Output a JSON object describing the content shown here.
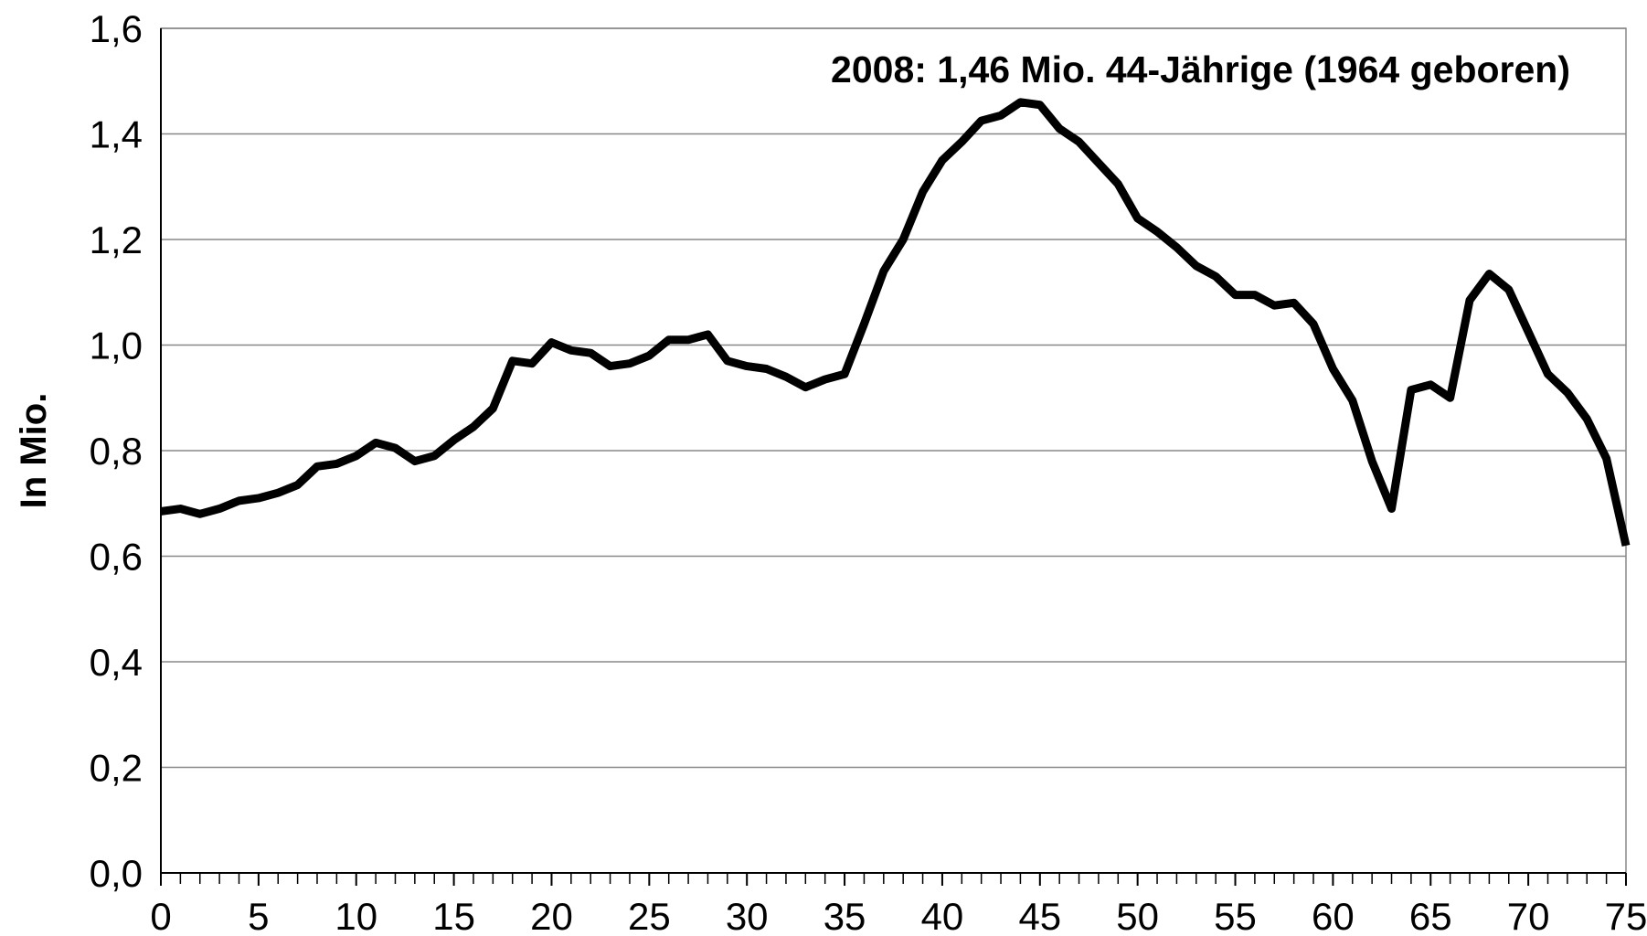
{
  "chart_data": {
    "type": "line",
    "annotation": "2008: 1,46 Mio. 44-Jährige (1964 geboren)",
    "ylabel": "In Mio.",
    "x": [
      0,
      1,
      2,
      3,
      4,
      5,
      6,
      7,
      8,
      9,
      10,
      11,
      12,
      13,
      14,
      15,
      16,
      17,
      18,
      19,
      20,
      21,
      22,
      23,
      24,
      25,
      26,
      27,
      28,
      29,
      30,
      31,
      32,
      33,
      34,
      35,
      36,
      37,
      38,
      39,
      40,
      41,
      42,
      43,
      44,
      45,
      46,
      47,
      48,
      49,
      50,
      51,
      52,
      53,
      54,
      55,
      56,
      57,
      58,
      59,
      60,
      61,
      62,
      63,
      64,
      65,
      66,
      67,
      68,
      69,
      70,
      71,
      72,
      73,
      74,
      75
    ],
    "series": [
      {
        "color": "#000000",
        "values": [
          0.685,
          0.69,
          0.68,
          0.69,
          0.705,
          0.71,
          0.72,
          0.735,
          0.77,
          0.775,
          0.79,
          0.815,
          0.805,
          0.78,
          0.79,
          0.82,
          0.845,
          0.88,
          0.97,
          0.965,
          1.005,
          0.99,
          0.985,
          0.96,
          0.965,
          0.98,
          1.01,
          1.01,
          1.02,
          0.97,
          0.96,
          0.955,
          0.94,
          0.92,
          0.935,
          0.945,
          1.04,
          1.14,
          1.2,
          1.29,
          1.35,
          1.385,
          1.425,
          1.435,
          1.46,
          1.455,
          1.41,
          1.385,
          1.345,
          1.305,
          1.24,
          1.215,
          1.185,
          1.15,
          1.13,
          1.095,
          1.095,
          1.075,
          1.08,
          1.04,
          0.955,
          0.895,
          0.78,
          0.69,
          0.915,
          0.925,
          0.9,
          1.085,
          1.135,
          1.105,
          1.025,
          0.945,
          0.91,
          0.86,
          0.785,
          0.62
        ]
      }
    ],
    "xlim": [
      0,
      75
    ],
    "xticks": [
      0,
      5,
      10,
      15,
      20,
      25,
      30,
      35,
      40,
      45,
      50,
      55,
      60,
      65,
      70,
      75
    ],
    "ylim": [
      0,
      1.6
    ],
    "yticks": [
      {
        "value": 0,
        "label": "0,0"
      },
      {
        "value": 0.2,
        "label": "0,2"
      },
      {
        "value": 0.4,
        "label": "0,4"
      },
      {
        "value": 0.6,
        "label": "0,6"
      },
      {
        "value": 0.8,
        "label": "0,8"
      },
      {
        "value": 1.0,
        "label": "1,0"
      },
      {
        "value": 1.2,
        "label": "1,2"
      },
      {
        "value": 1.4,
        "label": "1,4"
      },
      {
        "value": 1.6,
        "label": "1,6"
      }
    ],
    "grid": true
  }
}
